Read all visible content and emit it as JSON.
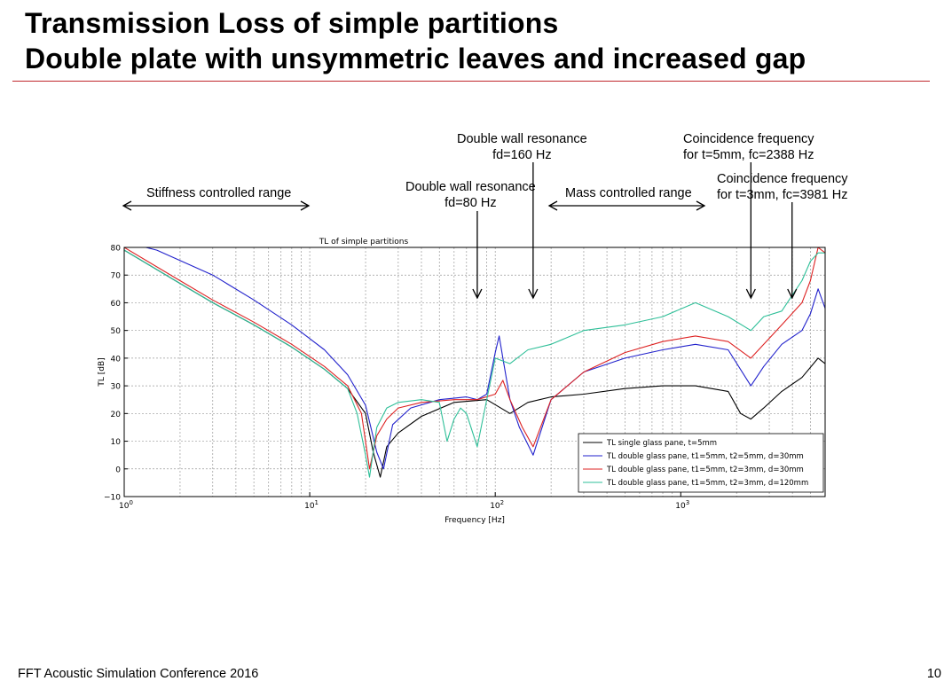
{
  "slide": {
    "title_line1": "Transmission Loss of simple partitions",
    "title_line2": "Double plate with unsymmetric leaves and increased gap",
    "footer": "FFT Acoustic Simulation Conference 2016",
    "page_number": "10",
    "accent_color": "#c0282d"
  },
  "annotations": {
    "stiffness": "Stiffness controlled range",
    "mass": "Mass controlled range",
    "dw160_line1": "Double wall resonance",
    "dw160_line2": "fd=160 Hz",
    "dw80_line1": "Double wall resonance",
    "dw80_line2": "fd=80 Hz",
    "coin5_line1": "Coincidence frequency",
    "coin5_line2": "for t=5mm, fc=2388 Hz",
    "coin3_line1": "Coincidence frequency",
    "coin3_line2": "for t=3mm, fc=3981 Hz"
  },
  "chart_data": {
    "type": "line",
    "title": "TL of simple partitions",
    "xlabel": "Frequency [Hz]",
    "ylabel": "TL [dB]",
    "x_scale": "log",
    "xlim": [
      1,
      6000
    ],
    "ylim": [
      -10,
      80
    ],
    "grid": true,
    "legend_position": "lower-right",
    "x_tick_labels": [
      {
        "value": 1,
        "base": "10",
        "exp": "0"
      },
      {
        "value": 10,
        "base": "10",
        "exp": "1"
      },
      {
        "value": 100,
        "base": "10",
        "exp": "2"
      },
      {
        "value": 1000,
        "base": "10",
        "exp": "3"
      }
    ],
    "y_tick_labels": [
      "80",
      "70",
      "60",
      "50",
      "40",
      "30",
      "20",
      "10",
      "0",
      "−10"
    ],
    "y_ticks": [
      80,
      70,
      60,
      50,
      40,
      30,
      20,
      10,
      0,
      -10
    ],
    "arrow_frequencies": [
      80,
      160,
      2388,
      3981
    ],
    "series": [
      {
        "name": "TL single glass pane, t=5mm",
        "color": "#000000",
        "x": [
          1,
          2,
          3,
          5,
          8,
          12,
          16,
          20,
          22,
          24,
          26,
          30,
          40,
          60,
          90,
          120,
          150,
          200,
          300,
          500,
          800,
          1200,
          1800,
          2100,
          2388,
          2800,
          3500,
          4500,
          5500,
          6000
        ],
        "y": [
          79,
          67,
          60,
          52,
          44,
          36,
          29,
          20,
          6,
          -3,
          8,
          13,
          19,
          24,
          25,
          20,
          24,
          26,
          27,
          29,
          30,
          30,
          28,
          20,
          18,
          22,
          28,
          33,
          40,
          38
        ]
      },
      {
        "name": "TL double glass pane, t1=5mm, t2=5mm, d=30mm",
        "color": "#2222cc",
        "x": [
          1,
          1.5,
          3,
          5,
          8,
          12,
          16,
          20,
          23,
          25,
          28,
          35,
          50,
          70,
          80,
          90,
          100,
          105,
          110,
          120,
          135,
          160,
          200,
          300,
          500,
          800,
          1200,
          1800,
          2388,
          2800,
          3500,
          4500,
          5000,
          5500,
          6000
        ],
        "y": [
          82,
          79,
          70,
          61,
          52,
          43,
          34,
          23,
          6,
          0,
          16,
          22,
          25,
          26,
          25,
          27,
          42,
          48,
          40,
          25,
          15,
          5,
          25,
          35,
          40,
          43,
          45,
          43,
          30,
          37,
          45,
          50,
          56,
          65,
          58
        ]
      },
      {
        "name": "TL double glass pane, t1=5mm, t2=3mm, d=30mm",
        "color": "#dd2222",
        "x": [
          1,
          2,
          3,
          5,
          8,
          12,
          16,
          19,
          21,
          23,
          26,
          30,
          40,
          60,
          80,
          100,
          110,
          120,
          140,
          160,
          200,
          300,
          500,
          800,
          1200,
          1800,
          2388,
          2800,
          3500,
          4500,
          5000,
          5500,
          6000
        ],
        "y": [
          80,
          68,
          61,
          53,
          45,
          37,
          30,
          20,
          0,
          12,
          18,
          22,
          24,
          25,
          25,
          27,
          32,
          25,
          15,
          8,
          25,
          35,
          42,
          46,
          48,
          46,
          40,
          45,
          52,
          60,
          68,
          80,
          78
        ]
      },
      {
        "name": "TL double glass pane, t1=5mm, t2=3mm, d=120mm",
        "color": "#2ebf98",
        "x": [
          1,
          2,
          3,
          5,
          8,
          12,
          16,
          18,
          20,
          21,
          23,
          26,
          30,
          40,
          50,
          55,
          60,
          65,
          70,
          80,
          90,
          100,
          120,
          150,
          200,
          300,
          500,
          800,
          1200,
          1800,
          2388,
          2800,
          3500,
          4500,
          5000,
          5500,
          6000
        ],
        "y": [
          79,
          67,
          60,
          52,
          44,
          36,
          29,
          20,
          5,
          -3,
          15,
          22,
          24,
          25,
          24,
          10,
          18,
          22,
          20,
          8,
          25,
          40,
          38,
          43,
          45,
          50,
          52,
          55,
          60,
          55,
          50,
          55,
          57,
          68,
          75,
          78,
          78
        ]
      }
    ]
  }
}
